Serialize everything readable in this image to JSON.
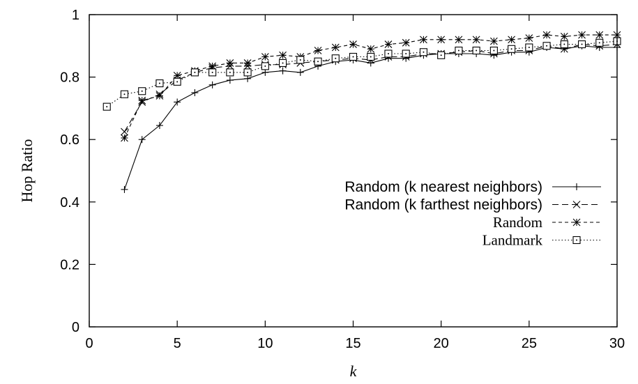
{
  "chart_data": {
    "type": "line",
    "xlabel": "k",
    "ylabel": "Hop Ratio",
    "xlim": [
      0,
      30
    ],
    "ylim": [
      0,
      1
    ],
    "xticks": [
      0,
      5,
      10,
      15,
      20,
      25,
      30
    ],
    "yticks": [
      0,
      0.2,
      0.4,
      0.6,
      0.8,
      1
    ],
    "ytick_labels": [
      "0",
      "0.2",
      "0.4",
      "0.6",
      "0.8",
      "1"
    ],
    "grid": false,
    "legend_position": "center-right",
    "series": [
      {
        "name": "Random (k nearest neighbors)",
        "line_style": "solid",
        "marker": "plus",
        "x": [
          2,
          3,
          4,
          5,
          6,
          7,
          8,
          9,
          10,
          11,
          12,
          13,
          14,
          15,
          16,
          17,
          18,
          19,
          20,
          21,
          22,
          23,
          24,
          25,
          26,
          27,
          28,
          29,
          30
        ],
        "y": [
          0.44,
          0.6,
          0.645,
          0.72,
          0.75,
          0.775,
          0.79,
          0.795,
          0.815,
          0.82,
          0.815,
          0.835,
          0.85,
          0.855,
          0.845,
          0.86,
          0.86,
          0.87,
          0.875,
          0.875,
          0.875,
          0.87,
          0.88,
          0.88,
          0.895,
          0.89,
          0.9,
          0.895,
          0.895
        ]
      },
      {
        "name": "Random (k farthest neighbors)",
        "line_style": "dashed",
        "marker": "x",
        "x": [
          2,
          3,
          4,
          5,
          6,
          7,
          8,
          9,
          10,
          11,
          12,
          13,
          14,
          15,
          16,
          17,
          18,
          19,
          20,
          21,
          22,
          23,
          24,
          25,
          26,
          27,
          28,
          29,
          30
        ],
        "y": [
          0.625,
          0.72,
          0.745,
          0.79,
          0.815,
          0.83,
          0.835,
          0.835,
          0.84,
          0.84,
          0.845,
          0.85,
          0.855,
          0.86,
          0.855,
          0.865,
          0.865,
          0.875,
          0.875,
          0.88,
          0.885,
          0.875,
          0.885,
          0.885,
          0.9,
          0.89,
          0.905,
          0.9,
          0.905
        ]
      },
      {
        "name": "Random",
        "line_style": "short-dashed",
        "marker": "star",
        "x": [
          2,
          3,
          4,
          5,
          6,
          7,
          8,
          9,
          10,
          11,
          12,
          13,
          14,
          15,
          16,
          17,
          18,
          19,
          20,
          21,
          22,
          23,
          24,
          25,
          26,
          27,
          28,
          29,
          30
        ],
        "y": [
          0.605,
          0.725,
          0.74,
          0.805,
          0.82,
          0.835,
          0.845,
          0.845,
          0.865,
          0.87,
          0.865,
          0.885,
          0.895,
          0.905,
          0.89,
          0.905,
          0.91,
          0.92,
          0.92,
          0.92,
          0.92,
          0.915,
          0.92,
          0.925,
          0.935,
          0.93,
          0.935,
          0.935,
          0.935
        ]
      },
      {
        "name": "Landmark",
        "line_style": "dotted",
        "marker": "square-dot",
        "x": [
          1,
          2,
          3,
          4,
          5,
          6,
          7,
          8,
          9,
          10,
          11,
          12,
          13,
          14,
          15,
          16,
          17,
          18,
          19,
          20,
          21,
          22,
          23,
          24,
          25,
          26,
          27,
          28,
          29,
          30
        ],
        "y": [
          0.705,
          0.745,
          0.755,
          0.78,
          0.785,
          0.815,
          0.815,
          0.815,
          0.815,
          0.835,
          0.845,
          0.855,
          0.85,
          0.86,
          0.865,
          0.865,
          0.875,
          0.875,
          0.88,
          0.87,
          0.885,
          0.885,
          0.885,
          0.89,
          0.895,
          0.9,
          0.905,
          0.905,
          0.91,
          0.915
        ]
      }
    ]
  }
}
